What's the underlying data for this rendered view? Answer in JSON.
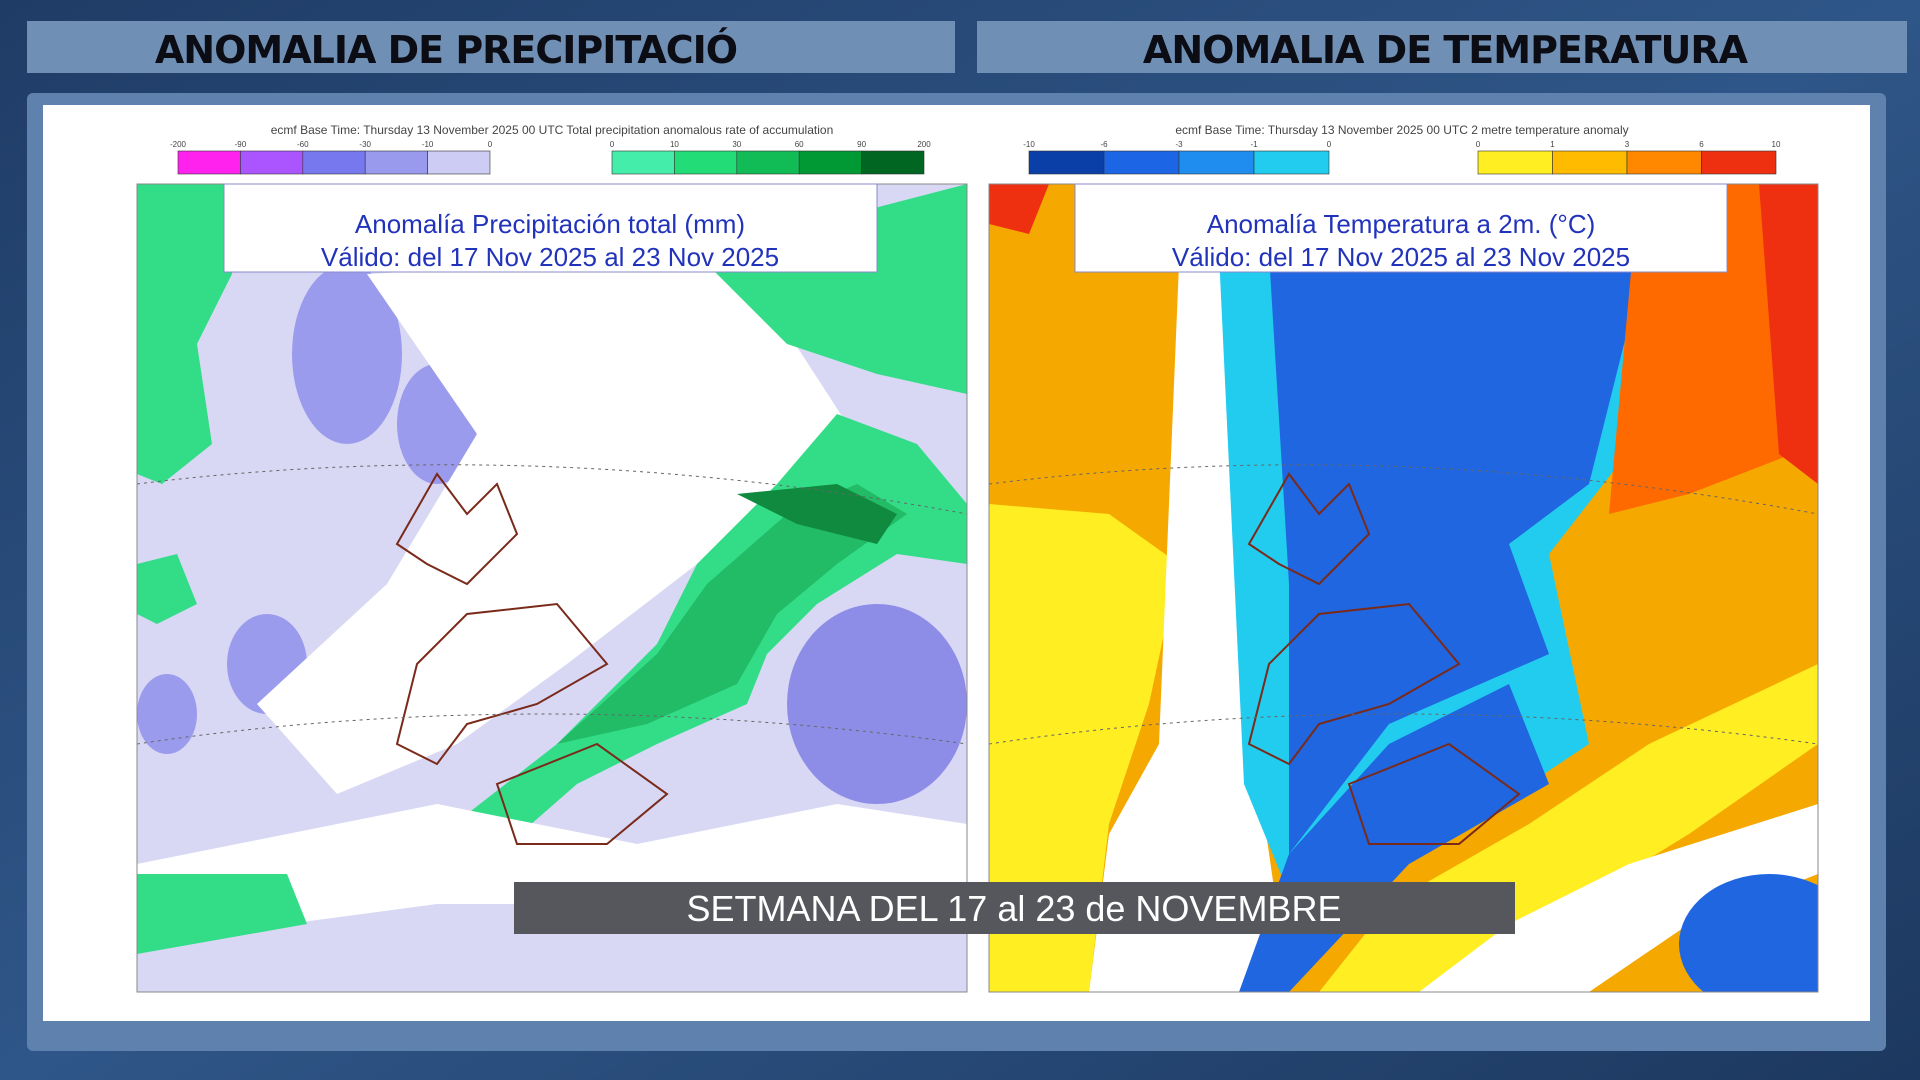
{
  "headers": [
    "ANOMALIA DE PRECIPITACIÓ",
    "ANOMALIA DE TEMPERATURA"
  ],
  "panels": [
    {
      "legend_header": "ecmf  Base Time: Thursday 13 November 2025 00 UTC Total precipitation anomalous rate of accumulation",
      "scale_labels": [
        [
          "-200",
          "-90",
          "-60",
          "-30",
          "-10",
          "0"
        ],
        [
          "0",
          "10",
          "30",
          "60",
          "90",
          "200"
        ]
      ],
      "title": [
        "Anomalía Precipitación total (mm)",
        "Válido: del 17 Nov 2025 al 23 Nov 2025"
      ]
    },
    {
      "legend_header": "ecmf  Base Time: Thursday 13 November 2025 00 UTC 2 metre temperature anomaly",
      "scale_labels": [
        [
          "-10",
          "-6",
          "-3",
          "-1",
          "0"
        ],
        [
          "0",
          "1",
          "3",
          "6",
          "10"
        ]
      ],
      "title": [
        "Anomalía Temperatura a 2m. (°C)",
        "Válido: del 17 Nov 2025 al 23 Nov 2025"
      ]
    }
  ],
  "caption": "SETMANA DEL 17 al 23 de NOVEMBRE"
}
